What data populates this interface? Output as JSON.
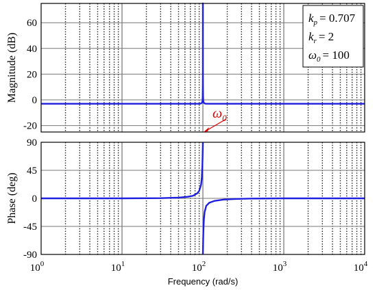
{
  "chart_data": [
    {
      "type": "line",
      "panel": "magnitude",
      "ylabel": "Magnitude (dB)",
      "x_scale": "log",
      "xlim": [
        1,
        10000
      ],
      "ylim": [
        -25,
        75
      ],
      "yticks": [
        "60",
        "40",
        "20",
        "0",
        "-20"
      ],
      "grid": true,
      "legend": "none",
      "series": [
        {
          "color": "#1f1fe0",
          "x": [
            1,
            10,
            50,
            80,
            90,
            95,
            98,
            99,
            99.5,
            99.8,
            99.9,
            99.95,
            100,
            100.05,
            100.1,
            100.2,
            100.5,
            101,
            102,
            105,
            110,
            120,
            200,
            1000,
            10000
          ],
          "y": [
            -3,
            -3,
            -3,
            -3,
            -3,
            -2.8,
            -2,
            -0.5,
            3,
            11,
            17,
            23,
            75,
            23,
            17,
            11,
            3,
            -0.5,
            -2,
            -2.8,
            -3,
            -3,
            -3,
            -3,
            -3
          ]
        }
      ]
    },
    {
      "type": "line",
      "panel": "phase",
      "ylabel": "Phase (deg)",
      "xlabel": "Frequency (rad/s)",
      "x_scale": "log",
      "xlim": [
        1,
        10000
      ],
      "ylim": [
        -90,
        90
      ],
      "yticks": [
        "90",
        "45",
        "0",
        "-45",
        "-90"
      ],
      "xticks": [
        {
          "base": "10",
          "exp": "0",
          "value": 1
        },
        {
          "base": "10",
          "exp": "1",
          "value": 10
        },
        {
          "base": "10",
          "exp": "2",
          "value": 100
        },
        {
          "base": "10",
          "exp": "3",
          "value": 1000
        },
        {
          "base": "10",
          "exp": "4",
          "value": 10000
        }
      ],
      "grid": true,
      "legend": "none",
      "series": [
        {
          "color": "#1f1fe0",
          "x": [
            1,
            10,
            30,
            50,
            65,
            75,
            85,
            90,
            95,
            97,
            98.5,
            99.2,
            99.6,
            99.9,
            100,
            null,
            100,
            100.1,
            100.4,
            100.8,
            101.5,
            103,
            105,
            110,
            120,
            140,
            180,
            250,
            400,
            1000,
            3000,
            10000
          ],
          "y": [
            0,
            0,
            0.3,
            1.2,
            2.5,
            4,
            8,
            12,
            22,
            33,
            52,
            66,
            78,
            87,
            90,
            null,
            -90,
            -87,
            -78,
            -66,
            -52,
            -33,
            -22,
            -12,
            -7,
            -4,
            -2,
            -1,
            -0.4,
            0,
            0,
            0
          ]
        }
      ]
    }
  ],
  "params": [
    {
      "var": "k",
      "sub": "p",
      "value": "= 0.707"
    },
    {
      "var": "k",
      "sub": "r",
      "value": "= 2"
    },
    {
      "var": "ω",
      "sub": "0",
      "value": "= 100"
    }
  ],
  "annotation": {
    "var": "ω",
    "sub": "0",
    "color": "#e00000",
    "x": 100
  }
}
